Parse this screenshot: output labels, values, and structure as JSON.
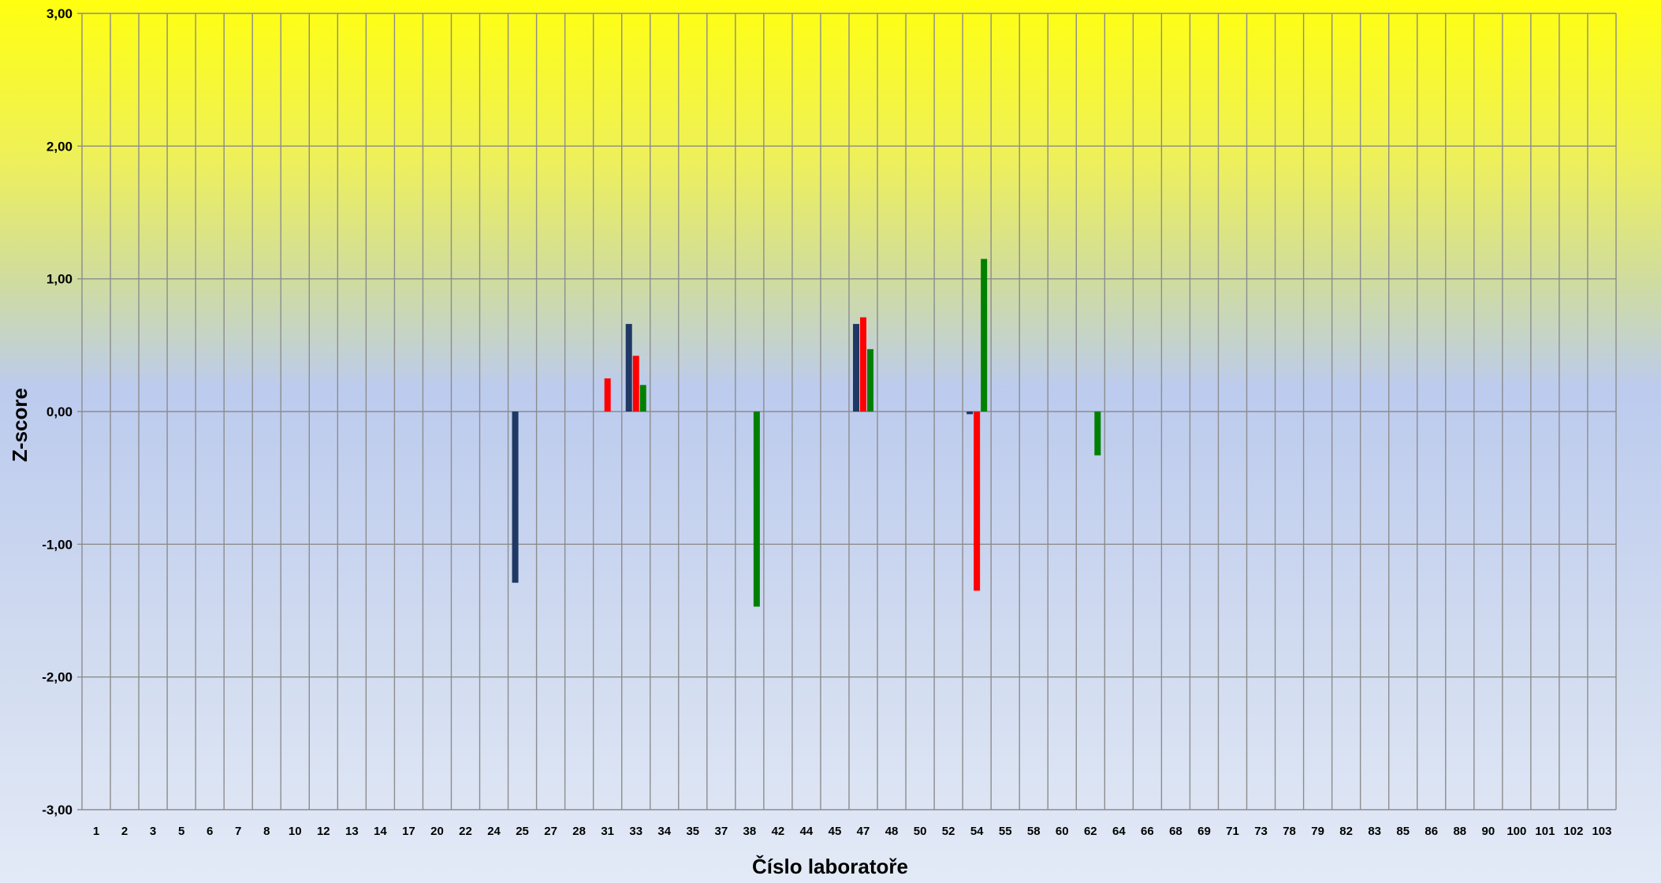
{
  "chart_data": {
    "type": "bar",
    "title": "",
    "xlabel": "Číslo laboratoře",
    "ylabel": "Z-score",
    "ylim": [
      -3,
      3
    ],
    "yticks": [
      3,
      2,
      1,
      0,
      -1,
      -2,
      -3
    ],
    "ytick_labels": [
      "3,00",
      "2,00",
      "1,00",
      "0,00",
      "-1,00",
      "-2,00",
      "-3,00"
    ],
    "grid": true,
    "legend": "none",
    "background": "vertical gradient: yellow (top) to light blue (bottom)",
    "categories": [
      "1",
      "2",
      "3",
      "5",
      "6",
      "7",
      "8",
      "10",
      "12",
      "13",
      "14",
      "17",
      "20",
      "22",
      "24",
      "25",
      "27",
      "28",
      "31",
      "33",
      "34",
      "35",
      "37",
      "38",
      "42",
      "44",
      "45",
      "47",
      "48",
      "50",
      "52",
      "54",
      "55",
      "58",
      "60",
      "62",
      "64",
      "66",
      "68",
      "69",
      "71",
      "73",
      "78",
      "79",
      "82",
      "83",
      "85",
      "86",
      "88",
      "90",
      "100",
      "101",
      "102",
      "103"
    ],
    "series": [
      {
        "color": "#1f3864",
        "values": [
          null,
          null,
          null,
          null,
          null,
          null,
          null,
          null,
          null,
          null,
          null,
          null,
          null,
          null,
          null,
          -1.29,
          null,
          null,
          null,
          0.66,
          null,
          null,
          null,
          null,
          null,
          null,
          null,
          0.66,
          null,
          null,
          null,
          -0.02,
          null,
          null,
          null,
          null,
          null,
          null,
          null,
          null,
          null,
          null,
          null,
          null,
          null,
          null,
          null,
          null,
          null,
          null,
          null,
          null,
          null,
          null
        ]
      },
      {
        "color": "#ff0000",
        "values": [
          null,
          null,
          null,
          null,
          null,
          null,
          null,
          null,
          null,
          null,
          null,
          null,
          null,
          null,
          null,
          null,
          null,
          null,
          0.25,
          0.42,
          null,
          null,
          null,
          null,
          null,
          null,
          null,
          0.71,
          null,
          null,
          null,
          -1.35,
          null,
          null,
          null,
          null,
          null,
          null,
          null,
          null,
          null,
          null,
          null,
          null,
          null,
          null,
          null,
          null,
          null,
          null,
          null,
          null,
          null,
          null
        ]
      },
      {
        "color": "#008000",
        "values": [
          null,
          null,
          null,
          null,
          null,
          null,
          null,
          null,
          null,
          null,
          null,
          null,
          null,
          null,
          null,
          null,
          null,
          null,
          null,
          0.2,
          null,
          null,
          null,
          -1.47,
          null,
          null,
          null,
          0.47,
          null,
          null,
          null,
          1.15,
          null,
          null,
          null,
          -0.33,
          null,
          null,
          null,
          null,
          null,
          null,
          null,
          null,
          null,
          null,
          null,
          null,
          null,
          null,
          null,
          null,
          null,
          null
        ]
      }
    ]
  }
}
